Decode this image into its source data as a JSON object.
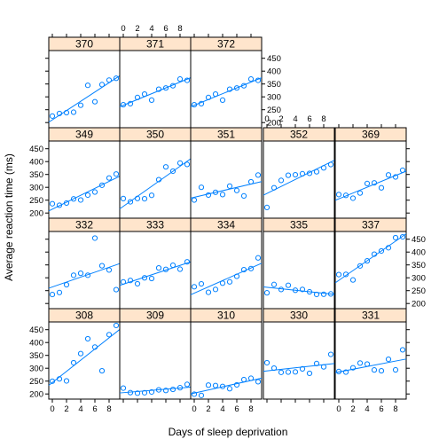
{
  "chart_data": {
    "type": "scatter",
    "layout": "trellis",
    "xlabel": "Days of sleep deprivation",
    "ylabel": "Average reaction time (ms)",
    "xlim": [
      -0.5,
      9.5
    ],
    "ylim": [
      180,
      480
    ],
    "x_ticks": [
      0,
      2,
      4,
      6,
      8
    ],
    "y_ticks": [
      200,
      250,
      300,
      350,
      400,
      450
    ],
    "x": [
      0,
      1,
      2,
      3,
      4,
      5,
      6,
      7,
      8,
      9
    ],
    "colors": {
      "strip": "#ffe5cc",
      "points": "#0080ff",
      "line": "#0080ff"
    },
    "panels": [
      {
        "subject": "370",
        "values": [
          225.3,
          235.2,
          238.5,
          240.3,
          267.3,
          344.8,
          281.1,
          347.6,
          365.2,
          372.2
        ]
      },
      {
        "subject": "371",
        "values": [
          269.4,
          273.5,
          297.6,
          310.6,
          287.2,
          329.6,
          334.5,
          343.2,
          369.1,
          364.1
        ]
      },
      {
        "subject": "372",
        "values": [
          269.4,
          273.5,
          297.6,
          310.6,
          287.2,
          329.6,
          334.5,
          343.2,
          369.1,
          364.1
        ]
      },
      {
        "subject": "349",
        "values": [
          236.1,
          230.3,
          238.9,
          254.9,
          250.8,
          269.8,
          281.6,
          308.1,
          336.3,
          351.6
        ]
      },
      {
        "subject": "350",
        "values": [
          256.3,
          243.5,
          256.7,
          255.5,
          268.9,
          329.7,
          379.4,
          362.9,
          394.5,
          389.0
        ]
      },
      {
        "subject": "351",
        "values": [
          250.5,
          300.1,
          269.9,
          280.6,
          271.8,
          304.6,
          287.7,
          266.6,
          321.5,
          347.6
        ]
      },
      {
        "subject": "352",
        "values": [
          221.7,
          298.2,
          326.9,
          346.8,
          348.8,
          352.8,
          354.4,
          360.5,
          375.6,
          388.5
        ]
      },
      {
        "subject": "369",
        "values": [
          271.9,
          268.7,
          257.7,
          277.7,
          314.8,
          317.2,
          298.1,
          348.1,
          340.3,
          366.5
        ]
      },
      {
        "subject": "332",
        "values": [
          234.9,
          242.8,
          272.9,
          309.8,
          317.5,
          309.9,
          454.2,
          346.8,
          330.3,
          253.9
        ]
      },
      {
        "subject": "333",
        "values": [
          283.9,
          289.6,
          276.8,
          299.8,
          297.2,
          338.2,
          332.6,
          348.8,
          333.4,
          362.0
        ]
      },
      {
        "subject": "334",
        "values": [
          265.1,
          276.4,
          243.4,
          254.7,
          279.0,
          284.2,
          305.6,
          331.5,
          335.8,
          377.3
        ]
      },
      {
        "subject": "335",
        "values": [
          241.6,
          273.9,
          254.5,
          270.8,
          251.5,
          254.6,
          245.5,
          235.3,
          235.9,
          237.3
        ]
      },
      {
        "subject": "337",
        "values": [
          312.4,
          313.2,
          291.6,
          346.1,
          365.7,
          391.8,
          404.3,
          416.7,
          455.9,
          458.9
        ]
      },
      {
        "subject": "308",
        "values": [
          249.6,
          258.7,
          250.8,
          321.4,
          356.9,
          414.7,
          382.2,
          290.1,
          430.6,
          466.4
        ]
      },
      {
        "subject": "309",
        "values": [
          222.7,
          205.3,
          203.0,
          204.7,
          207.7,
          215.9,
          213.6,
          217.7,
          224.3,
          237.3
        ]
      },
      {
        "subject": "310",
        "values": [
          199.1,
          194.3,
          234.3,
          232.8,
          229.3,
          220.5,
          235.4,
          255.8,
          261.0,
          247.5
        ]
      },
      {
        "subject": "330",
        "values": [
          321.5,
          300.4,
          283.9,
          285.1,
          285.8,
          297.6,
          280.2,
          318.3,
          305.3,
          354.0
        ]
      },
      {
        "subject": "331",
        "values": [
          287.2,
          285.0,
          301.8,
          320.1,
          316.3,
          293.3,
          290.1,
          334.8,
          293.7,
          371.6
        ]
      }
    ]
  }
}
